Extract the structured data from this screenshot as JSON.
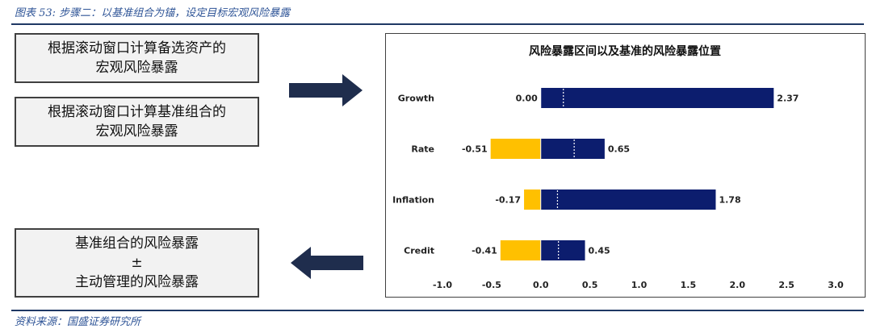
{
  "figure_title": "图表 53:  步骤二：以基准组合为锚，设定目标宏观风险暴露",
  "source": "资料来源：国盛证券研究所",
  "steps": {
    "step1": {
      "line1": "根据滚动窗口计算备选资产的",
      "line2": "宏观风险暴露"
    },
    "step2": {
      "line1": "根据滚动窗口计算基准组合的",
      "line2": "宏观风险暴露"
    },
    "step3": {
      "line1": "基准组合的风险暴露",
      "line2": "±",
      "line3": "主动管理的风险暴露"
    }
  },
  "colors": {
    "arrow": "#1f2d4d",
    "positive_bar": "#0c1d6e",
    "negative_bar": "#ffc000",
    "divider": "#ffffff",
    "rule": "#1f3864"
  },
  "chart_data": {
    "type": "bar",
    "orientation": "horizontal",
    "title": "风险暴露区间以及基准的风险暴露位置",
    "categories": [
      "Growth",
      "Rate",
      "Inflation",
      "Credit"
    ],
    "lower": [
      0.0,
      -0.51,
      -0.17,
      -0.41
    ],
    "upper": [
      2.37,
      0.65,
      1.78,
      0.45
    ],
    "lower_labels": [
      "0.00",
      "-0.51",
      "-0.17",
      "-0.41"
    ],
    "upper_labels": [
      "2.37",
      "0.65",
      "1.78",
      "0.45"
    ],
    "benchmark_position": [
      0.23,
      0.34,
      0.17,
      0.18
    ],
    "xlim": [
      -1.0,
      3.0
    ],
    "xticks": [
      -1.0,
      -0.5,
      0.0,
      0.5,
      1.0,
      1.5,
      2.0,
      2.5,
      3.0
    ],
    "xtick_labels": [
      "-1.0",
      "-0.5",
      "0.0",
      "0.5",
      "1.0",
      "1.5",
      "2.0",
      "2.5",
      "3.0"
    ],
    "xlabel": "",
    "ylabel": "",
    "grid": false,
    "legend": "none"
  }
}
